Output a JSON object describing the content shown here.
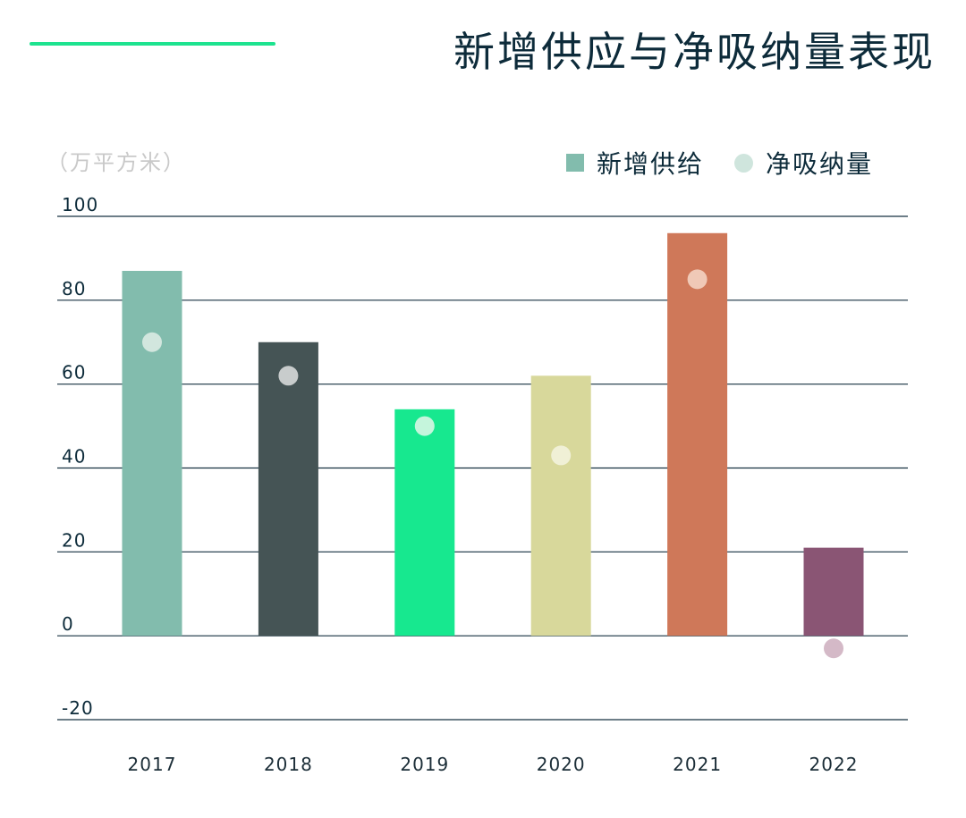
{
  "header": {
    "title": "新增供应与净吸纳量表现",
    "accent_color": "#1de38f"
  },
  "chart_data": {
    "type": "bar",
    "title": "新增供应与净吸纳量表现",
    "unit_label": "（万平方米）",
    "categories": [
      "2017",
      "2018",
      "2019",
      "2020",
      "2021",
      "2022"
    ],
    "series": [
      {
        "name": "新增供给",
        "kind": "bar",
        "values": [
          87,
          70,
          54,
          62,
          96,
          21
        ]
      },
      {
        "name": "净吸纳量",
        "kind": "dot",
        "values": [
          70,
          62,
          50,
          43,
          85,
          -3
        ]
      }
    ],
    "bar_colors": [
      "#82bcad",
      "#455455",
      "#17e88f",
      "#d8d89b",
      "#cf7859",
      "#8a5574"
    ],
    "dot_colors": [
      "#d2e6de",
      "#c8cccc",
      "#c5f5dc",
      "#f0f0d6",
      "#f0c9b7",
      "#d4b9c7"
    ],
    "ylim": [
      -20,
      100
    ],
    "yticks": [
      {
        "value": 100,
        "label": "100"
      },
      {
        "value": 80,
        "label": "80"
      },
      {
        "value": 60,
        "label": "60"
      },
      {
        "value": 40,
        "label": "40"
      },
      {
        "value": 20,
        "label": "20"
      },
      {
        "value": 0,
        "label": "0"
      },
      {
        "value": -20,
        "label": "-20"
      }
    ],
    "grid": true,
    "legend_position": "top-right",
    "legend": [
      {
        "label": "新增供给",
        "color": "#82bcad",
        "shape": "square"
      },
      {
        "label": "净吸纳量",
        "color": "#cfe5dd",
        "shape": "circle"
      }
    ]
  }
}
